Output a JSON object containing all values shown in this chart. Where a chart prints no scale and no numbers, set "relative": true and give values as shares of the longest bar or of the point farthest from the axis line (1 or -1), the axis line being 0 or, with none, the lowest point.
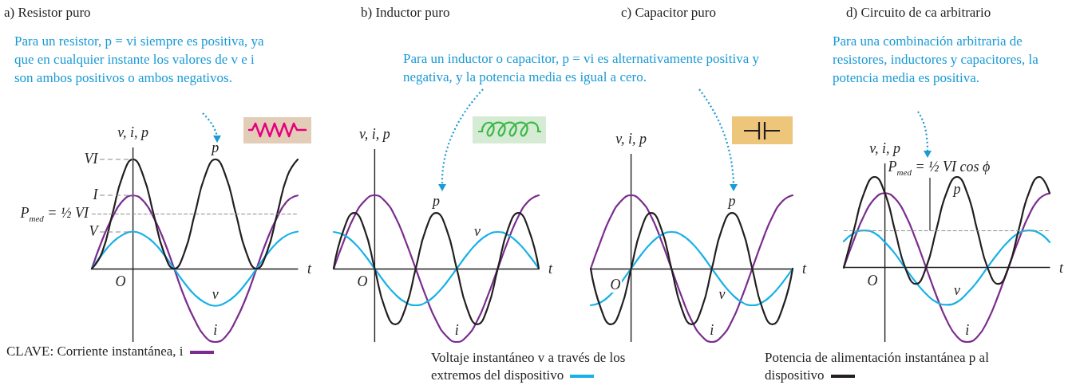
{
  "chart_data": [
    {
      "type": "line",
      "title": "a) Resistor puro",
      "xlabel": "t",
      "ylabel": "v, i, p",
      "relative": true,
      "marker": "none",
      "line_style": "solid",
      "grid": false,
      "legend": false,
      "categories": [
        null,
        null,
        null,
        null,
        null,
        null,
        null,
        null,
        null,
        null,
        null,
        null,
        null,
        null,
        null,
        null,
        null,
        null,
        null,
        null,
        null
      ],
      "series": [
        {
          "name": "i",
          "color": "#7b2d8e",
          "values": [
            0,
            0.26,
            0.47,
            0.62,
            0.67,
            0.62,
            0.47,
            0.26,
            0,
            -0.26,
            -0.47,
            -0.62,
            -0.67,
            -0.62,
            -0.47,
            -0.26,
            0,
            0.26,
            0.47,
            0.62,
            0.67
          ]
        },
        {
          "name": "v",
          "color": "#17b1e8",
          "values": [
            0,
            0.13,
            0.24,
            0.31,
            0.34,
            0.31,
            0.24,
            0.13,
            0,
            -0.13,
            -0.24,
            -0.31,
            -0.34,
            -0.31,
            -0.24,
            -0.13,
            0,
            0.13,
            0.24,
            0.31,
            0.34
          ]
        },
        {
          "name": "p",
          "color": "#231f20",
          "values": [
            0,
            0.15,
            0.5,
            0.85,
            1,
            0.85,
            0.5,
            0.15,
            0,
            0.15,
            0.5,
            0.85,
            1,
            0.85,
            0.5,
            0.15,
            0,
            0.15,
            0.5,
            0.85,
            1
          ]
        }
      ],
      "ref_lines": [
        {
          "axis": "y",
          "value": 0.5,
          "label": "P$_{med}$ = ½ VI",
          "color": "#8c8c8c",
          "line_style": "dashed"
        }
      ],
      "annotations": [
        "O",
        "Para un resistor, p = vi siempre es positiva, ya que en cualquier instante los valores de v e i son ambos positivos o ambos negativos.",
        "CLAVE: Corriente instantánea, i",
        "VI",
        "I",
        "V"
      ]
    },
    {
      "type": "line",
      "title": "b) Inductor puro",
      "xlabel": "t",
      "ylabel": "v, i, p",
      "relative": true,
      "marker": "none",
      "line_style": "solid",
      "grid": false,
      "legend": false,
      "categories": [
        null,
        null,
        null,
        null,
        null,
        null,
        null,
        null,
        null,
        null,
        null,
        null,
        null,
        null,
        null,
        null,
        null,
        null,
        null,
        null,
        null
      ],
      "series": [
        {
          "name": "i",
          "color": "#7b2d8e",
          "values": [
            0,
            0.38,
            0.71,
            0.92,
            1,
            0.92,
            0.71,
            0.38,
            0,
            -0.38,
            -0.71,
            -0.92,
            -1,
            -0.92,
            -0.71,
            -0.38,
            0,
            0.38,
            0.71,
            0.92,
            1
          ]
        },
        {
          "name": "v",
          "color": "#17b1e8",
          "values": [
            0.5,
            0.46,
            0.35,
            0.19,
            0,
            -0.19,
            -0.35,
            -0.46,
            -0.5,
            -0.46,
            -0.35,
            -0.19,
            0,
            0.19,
            0.35,
            0.46,
            0.5,
            0.46,
            0.35,
            0.19,
            0
          ]
        },
        {
          "name": "p",
          "color": "#231f20",
          "values": [
            0,
            0.54,
            0.76,
            0.54,
            0,
            -0.54,
            -0.76,
            -0.54,
            0,
            0.54,
            0.76,
            0.54,
            0,
            -0.54,
            -0.76,
            -0.54,
            0,
            0.54,
            0.76,
            0.54,
            0
          ]
        }
      ],
      "annotations": [
        "O",
        "Para un inductor o capacitor, p = vi es alternativamente positiva y negativa, y la potencia media es igual a cero.",
        "Voltaje instantáneo v a través de los extremos del dispositivo"
      ]
    },
    {
      "type": "line",
      "title": "c) Capacitor puro",
      "xlabel": "t",
      "ylabel": "v, i, p",
      "relative": true,
      "marker": "none",
      "line_style": "solid",
      "grid": false,
      "legend": false,
      "categories": [
        null,
        null,
        null,
        null,
        null,
        null,
        null,
        null,
        null,
        null,
        null,
        null,
        null,
        null,
        null,
        null,
        null,
        null,
        null,
        null,
        null
      ],
      "series": [
        {
          "name": "i",
          "color": "#7b2d8e",
          "values": [
            0,
            0.38,
            0.71,
            0.92,
            1,
            0.92,
            0.71,
            0.38,
            0,
            -0.38,
            -0.71,
            -0.92,
            -1,
            -0.92,
            -0.71,
            -0.38,
            0,
            0.38,
            0.71,
            0.92,
            1
          ]
        },
        {
          "name": "v",
          "color": "#17b1e8",
          "values": [
            -0.5,
            -0.46,
            -0.35,
            -0.19,
            0,
            0.19,
            0.35,
            0.46,
            0.5,
            0.46,
            0.35,
            0.19,
            0,
            -0.19,
            -0.35,
            -0.46,
            -0.5,
            -0.46,
            -0.35,
            -0.19,
            0
          ]
        },
        {
          "name": "p",
          "color": "#231f20",
          "values": [
            0,
            -0.54,
            -0.76,
            -0.54,
            0,
            0.54,
            0.76,
            0.54,
            0,
            -0.54,
            -0.76,
            -0.54,
            0,
            0.54,
            0.76,
            0.54,
            0,
            -0.54,
            -0.76,
            -0.54,
            0
          ]
        }
      ],
      "annotations": [
        "O"
      ]
    },
    {
      "type": "line",
      "title": "d) Circuito de ca arbitrario",
      "xlabel": "t",
      "ylabel": "v, i, p",
      "relative": true,
      "marker": "none",
      "line_style": "solid",
      "grid": false,
      "legend": false,
      "categories": [
        null,
        null,
        null,
        null,
        null,
        null,
        null,
        null,
        null,
        null,
        null,
        null,
        null,
        null,
        null,
        null,
        null,
        null,
        null,
        null,
        null
      ],
      "series": [
        {
          "name": "i",
          "color": "#7b2d8e",
          "values": [
            0,
            0.31,
            0.58,
            0.76,
            0.82,
            0.76,
            0.58,
            0.31,
            0,
            -0.31,
            -0.58,
            -0.76,
            -0.82,
            -0.76,
            -0.58,
            -0.31,
            0,
            0.31,
            0.58,
            0.76,
            0.82
          ]
        },
        {
          "name": "v",
          "color": "#17b1e8",
          "values": [
            0.29,
            0.38,
            0.41,
            0.38,
            0.28,
            0.15,
            -0.01,
            -0.16,
            -0.29,
            -0.38,
            -0.41,
            -0.38,
            -0.28,
            -0.15,
            0.01,
            0.16,
            0.29,
            0.38,
            0.41,
            0.38,
            0.28
          ]
        },
        {
          "name": "p",
          "color": "#231f20",
          "values": [
            0,
            0.42,
            0.83,
            1,
            0.82,
            0.4,
            -0.01,
            -0.18,
            0,
            0.42,
            0.83,
            1,
            0.82,
            0.4,
            -0.01,
            -0.18,
            0,
            0.42,
            0.83,
            1,
            0.82
          ]
        }
      ],
      "ref_lines": [
        {
          "axis": "y",
          "value": 0.41,
          "label": "P$_{med}$ = ½ VI cos ϕ",
          "color": "#8c8c8c",
          "line_style": "dashed"
        }
      ],
      "annotations": [
        "O",
        "Para una combinación arbitraria de resistores, inductores y capacitores, la potencia media es positiva.",
        "Potencia de alimentación instantánea p al dispositivo"
      ]
    }
  ]
}
